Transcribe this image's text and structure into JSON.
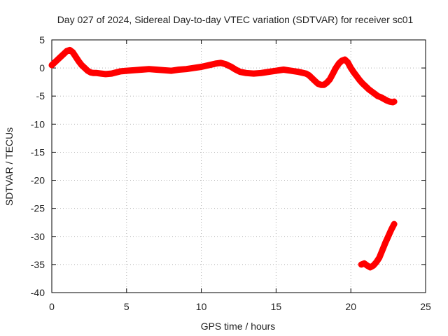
{
  "chart_data": {
    "type": "scatter",
    "title": "Day 027 of 2024, Sidereal Day-to-day VTEC variation (SDTVAR) for receiver sc01",
    "xlabel": "GPS time / hours",
    "ylabel": "SDTVAR / TECUs",
    "xlim": [
      0,
      25
    ],
    "ylim": [
      -40,
      5
    ],
    "xticks": [
      0,
      5,
      10,
      15,
      20,
      25
    ],
    "yticks": [
      5,
      0,
      -5,
      -10,
      -15,
      -20,
      -25,
      -30,
      -35,
      -40
    ],
    "grid": true,
    "series_color": "#ff0000",
    "series": [
      {
        "name": "track-1",
        "x": [
          0.0,
          0.2,
          0.4,
          0.6,
          0.8,
          1.0,
          1.2,
          1.4,
          1.6,
          1.8,
          2.0,
          2.2,
          2.4,
          2.6,
          2.8,
          3.0,
          3.3,
          3.6,
          4.0,
          4.3,
          4.6,
          5.0,
          5.5,
          6.0,
          6.5,
          7.0,
          7.5,
          8.0,
          8.5,
          9.0,
          9.5,
          10.0,
          10.5,
          11.0,
          11.3,
          11.6,
          12.0,
          12.3,
          12.6,
          13.0,
          13.5,
          14.0,
          14.5,
          15.0,
          15.5,
          16.0,
          16.5,
          17.0,
          17.2,
          17.4,
          17.6,
          17.8,
          18.0,
          18.2,
          18.4,
          18.6,
          18.8,
          19.0,
          19.2,
          19.4,
          19.6,
          19.8,
          20.0,
          20.2,
          20.4,
          20.6,
          20.8,
          21.0,
          21.2,
          21.4,
          21.6,
          21.8,
          22.0,
          22.2,
          22.4,
          22.6,
          22.8,
          22.9
        ],
        "y": [
          0.5,
          1.0,
          1.5,
          2.0,
          2.5,
          3.0,
          3.2,
          2.8,
          2.0,
          1.2,
          0.5,
          0.0,
          -0.5,
          -0.8,
          -0.9,
          -0.9,
          -1.0,
          -1.1,
          -1.0,
          -0.8,
          -0.6,
          -0.5,
          -0.4,
          -0.3,
          -0.2,
          -0.3,
          -0.4,
          -0.5,
          -0.3,
          -0.2,
          0.0,
          0.2,
          0.5,
          0.8,
          0.9,
          0.7,
          0.2,
          -0.3,
          -0.7,
          -0.9,
          -1.0,
          -0.9,
          -0.7,
          -0.5,
          -0.3,
          -0.5,
          -0.7,
          -1.0,
          -1.3,
          -1.8,
          -2.3,
          -2.8,
          -3.0,
          -3.0,
          -2.6,
          -2.0,
          -1.0,
          0.0,
          0.8,
          1.3,
          1.5,
          1.0,
          0.0,
          -0.8,
          -1.5,
          -2.2,
          -2.8,
          -3.3,
          -3.8,
          -4.2,
          -4.6,
          -5.0,
          -5.2,
          -5.5,
          -5.8,
          -6.0,
          -6.1,
          -6.0
        ]
      },
      {
        "name": "track-2",
        "x": [
          20.7,
          20.9,
          21.1,
          21.3,
          21.5,
          21.7,
          21.9,
          22.1,
          22.3,
          22.5,
          22.7,
          22.9
        ],
        "y": [
          -35.0,
          -34.8,
          -35.2,
          -35.5,
          -35.2,
          -34.6,
          -33.8,
          -32.5,
          -31.2,
          -30.0,
          -28.8,
          -27.8
        ]
      }
    ]
  }
}
